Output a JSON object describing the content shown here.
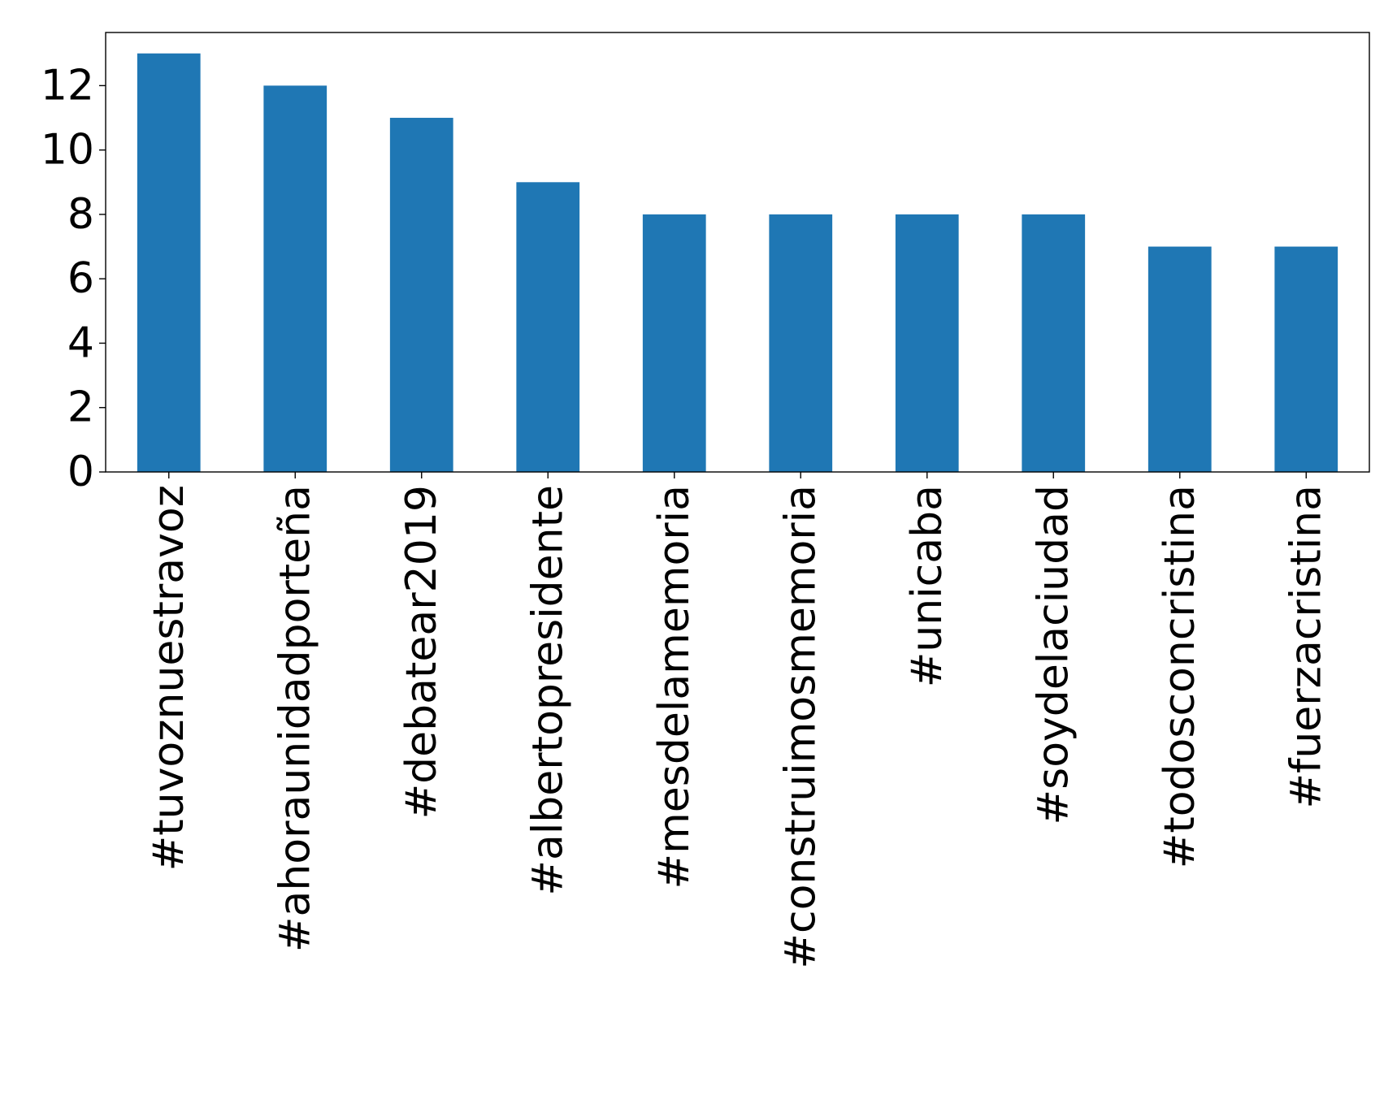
{
  "chart_data": {
    "type": "bar",
    "title": "",
    "xlabel": "",
    "ylabel": "",
    "categories": [
      "#tuvoznuestravoz",
      "#ahoraunidadporteña",
      "#debatear2019",
      "#albertopresidente",
      "#mesdelamemoria",
      "#construimosmemoria",
      "#unicaba",
      "#soydelaciudad",
      "#todosconcristina",
      "#fuerzacristina"
    ],
    "values": [
      13,
      12,
      11,
      9,
      8,
      8,
      8,
      8,
      7,
      7
    ],
    "ylim": [
      0,
      13.65
    ],
    "yticks": [
      0,
      2,
      4,
      6,
      8,
      10,
      12
    ],
    "ytick_labels": [
      "0",
      "2",
      "4",
      "6",
      "8",
      "10",
      "12"
    ],
    "bar_color": "#1f77b4",
    "grid": false,
    "legend": "none"
  }
}
